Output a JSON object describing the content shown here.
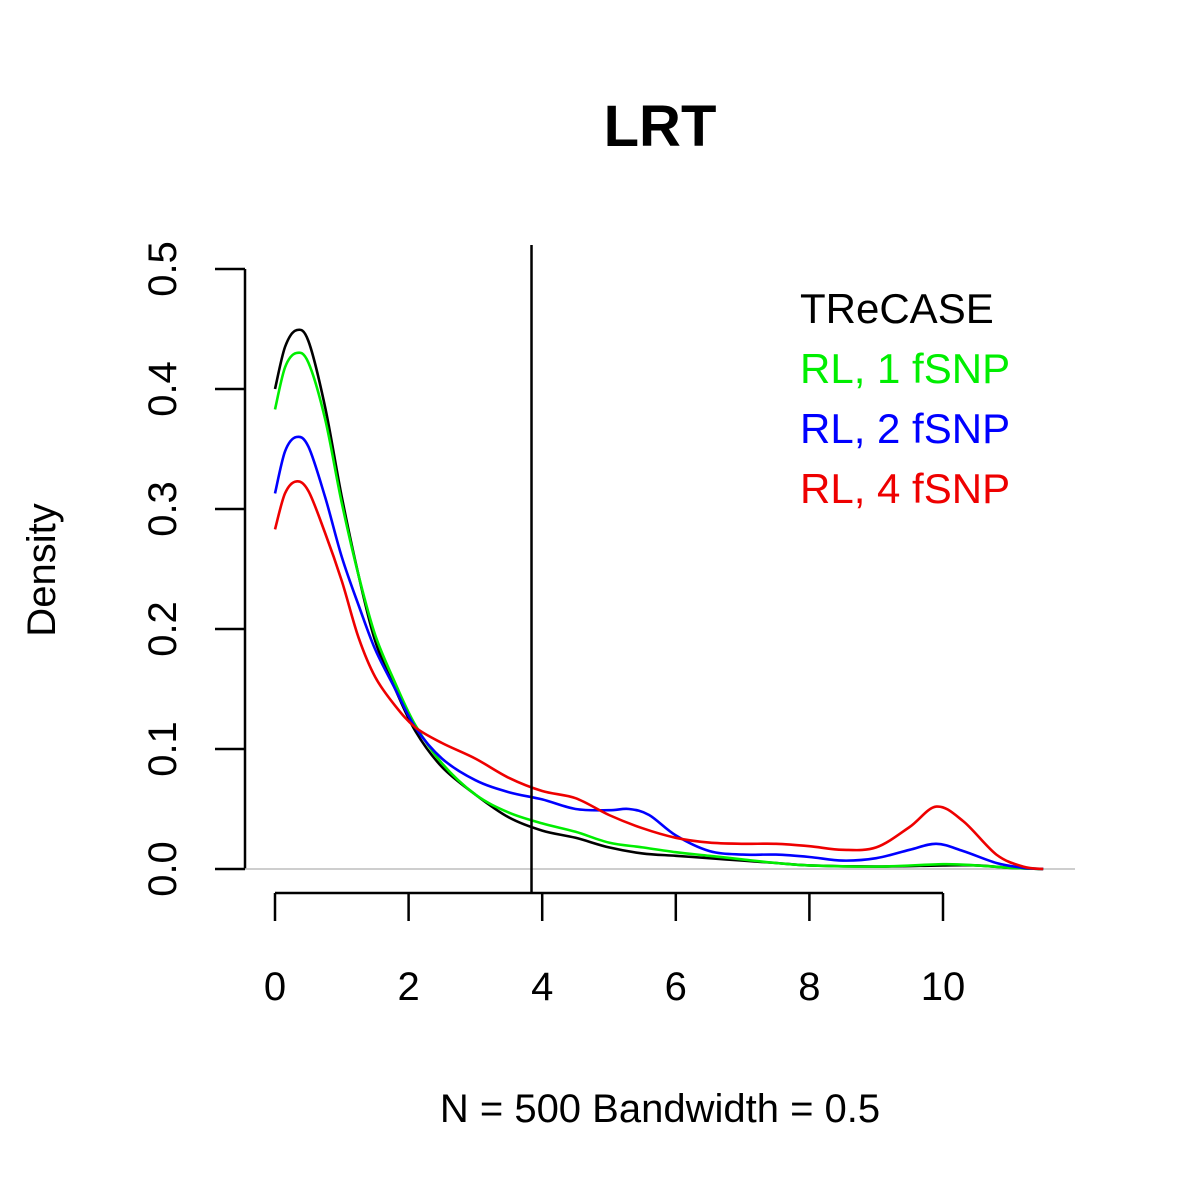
{
  "chart_data": {
    "type": "line",
    "title": "LRT",
    "xlabel": "N = 500   Bandwidth = 0.5",
    "ylabel": "Density",
    "xlim": [
      0,
      11.5
    ],
    "ylim": [
      0,
      0.5
    ],
    "x_ticks": [
      0,
      2,
      4,
      6,
      8,
      10
    ],
    "x_tick_labels": [
      "0",
      "2",
      "4",
      "6",
      "8",
      "10"
    ],
    "y_ticks": [
      0,
      0.1,
      0.2,
      0.3,
      0.4,
      0.5
    ],
    "y_tick_labels": [
      "0.0",
      "0.1",
      "0.2",
      "0.3",
      "0.4",
      "0.5"
    ],
    "baseline": 0,
    "vertical_line_x": 3.84,
    "grid": false,
    "legend_position": "top-right",
    "series": [
      {
        "name": "TReCASE",
        "color": "#000000",
        "points": [
          [
            0,
            0.4
          ],
          [
            0.15,
            0.435
          ],
          [
            0.32,
            0.449
          ],
          [
            0.5,
            0.44
          ],
          [
            0.75,
            0.385
          ],
          [
            1.0,
            0.31
          ],
          [
            1.25,
            0.245
          ],
          [
            1.5,
            0.19
          ],
          [
            1.8,
            0.15
          ],
          [
            2.1,
            0.115
          ],
          [
            2.5,
            0.085
          ],
          [
            3.0,
            0.062
          ],
          [
            3.5,
            0.043
          ],
          [
            4.0,
            0.032
          ],
          [
            4.5,
            0.026
          ],
          [
            5.0,
            0.018
          ],
          [
            5.5,
            0.013
          ],
          [
            6.0,
            0.011
          ],
          [
            6.5,
            0.009
          ],
          [
            7.0,
            0.007
          ],
          [
            7.5,
            0.005
          ],
          [
            8.0,
            0.003
          ],
          [
            9.0,
            0.002
          ],
          [
            10.0,
            0.003
          ],
          [
            10.5,
            0.003
          ],
          [
            11.0,
            0.001
          ],
          [
            11.5,
            0.0
          ]
        ]
      },
      {
        "name": "RL, 1 fSNP",
        "color": "#00ee00",
        "points": [
          [
            0,
            0.383
          ],
          [
            0.15,
            0.418
          ],
          [
            0.32,
            0.43
          ],
          [
            0.5,
            0.422
          ],
          [
            0.75,
            0.375
          ],
          [
            1.0,
            0.305
          ],
          [
            1.25,
            0.245
          ],
          [
            1.5,
            0.195
          ],
          [
            1.8,
            0.155
          ],
          [
            2.1,
            0.12
          ],
          [
            2.5,
            0.088
          ],
          [
            3.0,
            0.062
          ],
          [
            3.5,
            0.047
          ],
          [
            4.0,
            0.038
          ],
          [
            4.5,
            0.031
          ],
          [
            5.0,
            0.022
          ],
          [
            5.5,
            0.018
          ],
          [
            6.0,
            0.014
          ],
          [
            6.5,
            0.011
          ],
          [
            7.0,
            0.008
          ],
          [
            7.5,
            0.005
          ],
          [
            8.0,
            0.003
          ],
          [
            9.0,
            0.002
          ],
          [
            10.0,
            0.004
          ],
          [
            10.5,
            0.003
          ],
          [
            11.0,
            0.001
          ],
          [
            11.5,
            0.0
          ]
        ]
      },
      {
        "name": "RL, 2 fSNP",
        "color": "#0000ff",
        "points": [
          [
            0,
            0.313
          ],
          [
            0.15,
            0.348
          ],
          [
            0.32,
            0.36
          ],
          [
            0.5,
            0.352
          ],
          [
            0.75,
            0.31
          ],
          [
            1.0,
            0.26
          ],
          [
            1.25,
            0.22
          ],
          [
            1.5,
            0.183
          ],
          [
            1.8,
            0.15
          ],
          [
            2.1,
            0.118
          ],
          [
            2.5,
            0.092
          ],
          [
            3.0,
            0.074
          ],
          [
            3.5,
            0.064
          ],
          [
            4.0,
            0.058
          ],
          [
            4.5,
            0.05
          ],
          [
            5.0,
            0.049
          ],
          [
            5.3,
            0.05
          ],
          [
            5.6,
            0.045
          ],
          [
            6.0,
            0.028
          ],
          [
            6.5,
            0.015
          ],
          [
            7.0,
            0.012
          ],
          [
            7.5,
            0.012
          ],
          [
            8.0,
            0.01
          ],
          [
            8.5,
            0.007
          ],
          [
            9.0,
            0.009
          ],
          [
            9.5,
            0.016
          ],
          [
            9.9,
            0.021
          ],
          [
            10.3,
            0.015
          ],
          [
            10.8,
            0.005
          ],
          [
            11.2,
            0.001
          ],
          [
            11.5,
            0.0
          ]
        ]
      },
      {
        "name": "RL, 4 fSNP",
        "color": "#ee0000",
        "points": [
          [
            0,
            0.283
          ],
          [
            0.15,
            0.313
          ],
          [
            0.32,
            0.323
          ],
          [
            0.5,
            0.315
          ],
          [
            0.75,
            0.28
          ],
          [
            1.0,
            0.24
          ],
          [
            1.25,
            0.193
          ],
          [
            1.5,
            0.16
          ],
          [
            1.8,
            0.136
          ],
          [
            2.1,
            0.118
          ],
          [
            2.5,
            0.105
          ],
          [
            3.0,
            0.092
          ],
          [
            3.5,
            0.076
          ],
          [
            4.0,
            0.065
          ],
          [
            4.5,
            0.059
          ],
          [
            5.0,
            0.045
          ],
          [
            5.5,
            0.034
          ],
          [
            6.0,
            0.026
          ],
          [
            6.5,
            0.022
          ],
          [
            7.0,
            0.021
          ],
          [
            7.5,
            0.021
          ],
          [
            8.0,
            0.019
          ],
          [
            8.5,
            0.016
          ],
          [
            9.0,
            0.018
          ],
          [
            9.5,
            0.035
          ],
          [
            9.9,
            0.052
          ],
          [
            10.3,
            0.04
          ],
          [
            10.8,
            0.012
          ],
          [
            11.2,
            0.002
          ],
          [
            11.5,
            0.0
          ]
        ]
      }
    ]
  }
}
